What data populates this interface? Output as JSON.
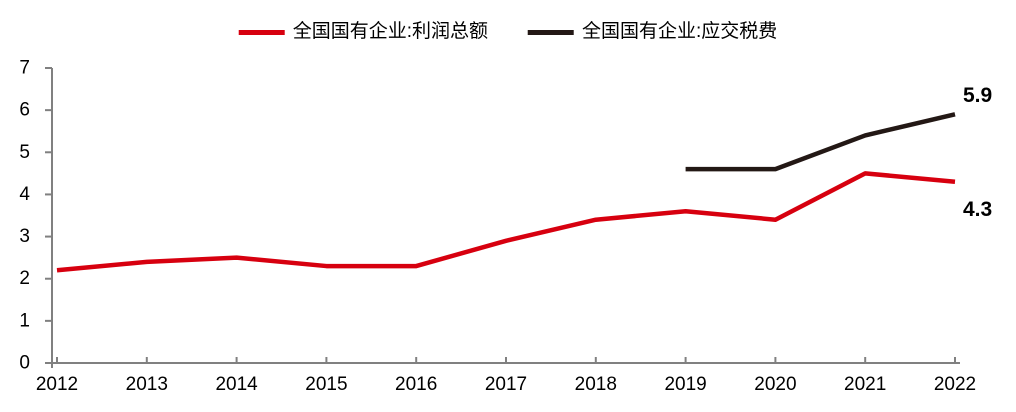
{
  "chart_data": {
    "type": "line",
    "title": "",
    "xlabel": "",
    "ylabel": "",
    "x": [
      2012,
      2013,
      2014,
      2015,
      2016,
      2017,
      2018,
      2019,
      2020,
      2021,
      2022
    ],
    "ylim": [
      0,
      7
    ],
    "yticks": [
      0,
      1,
      2,
      3,
      4,
      5,
      6,
      7
    ],
    "grid": false,
    "legend_position": "top",
    "axis_color": "#808080",
    "tick_text_color": "#000000",
    "series": [
      {
        "key": "profit",
        "name": "全国国有企业:利润总额",
        "color": "#d7000f",
        "values": [
          2.2,
          2.4,
          2.5,
          2.3,
          2.3,
          2.9,
          3.4,
          3.6,
          3.4,
          4.5,
          4.3
        ],
        "end_label": "4.3"
      },
      {
        "key": "taxes",
        "name": "全国国有企业:应交税费",
        "color": "#231815",
        "values": [
          null,
          null,
          null,
          null,
          null,
          null,
          null,
          4.6,
          4.6,
          5.4,
          5.9
        ],
        "end_label": "5.9"
      }
    ]
  }
}
